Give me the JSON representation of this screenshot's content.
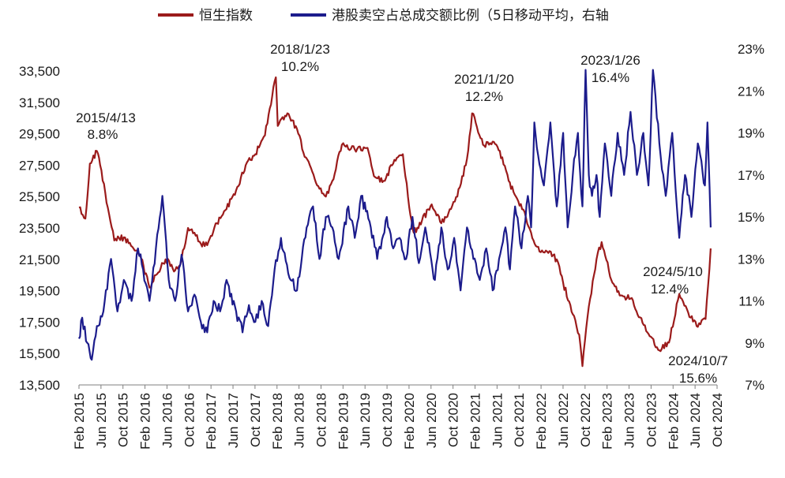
{
  "chart_data": {
    "type": "line",
    "title": "",
    "colors": {
      "hsi": "#9b1b1b",
      "short": "#1c1c8c"
    },
    "legend": [
      {
        "name": "恒生指数",
        "axis": "left"
      },
      {
        "name": "港股卖空占总成交额比例（5日移动平均，右轴",
        "axis": "right"
      }
    ],
    "x_ticks": [
      "Feb 2015",
      "Jun 2015",
      "Oct 2015",
      "Feb 2016",
      "Jun 2016",
      "Oct 2016",
      "Feb 2017",
      "Jun 2017",
      "Oct 2017",
      "Feb 2018",
      "Jun 2018",
      "Oct 2018",
      "Feb 2019",
      "Jun 2019",
      "Oct 2019",
      "Feb 2020",
      "Jun 2020",
      "Oct 2020",
      "Feb 2021",
      "Jun 2021",
      "Oct 2021",
      "Feb 2022",
      "Jun 2022",
      "Oct 2022",
      "Feb 2023",
      "Jun 2023",
      "Oct 2023",
      "Feb 2024",
      "Jun 2024",
      "Oct 2024"
    ],
    "x_range": [
      2015.0,
      2024.95
    ],
    "y_left": {
      "ticks": [
        "13,500",
        "15,500",
        "17,500",
        "19,500",
        "21,500",
        "23,500",
        "25,500",
        "27,500",
        "29,500",
        "31,500",
        "33,500"
      ],
      "min": 13500,
      "max": 33500
    },
    "y_right": {
      "ticks": [
        "7%",
        "9%",
        "11%",
        "13%",
        "15%",
        "17%",
        "19%",
        "21%",
        "23%"
      ],
      "min": 7,
      "max": 23
    },
    "series": [
      {
        "name": "恒生指数",
        "axis": "left",
        "x": [
          2015.0,
          2015.1,
          2015.17,
          2015.28,
          2015.33,
          2015.45,
          2015.55,
          2015.7,
          2015.85,
          2015.95,
          2016.1,
          2016.2,
          2016.35,
          2016.5,
          2016.6,
          2016.7,
          2016.8,
          2016.9,
          2017.0,
          2017.15,
          2017.3,
          2017.45,
          2017.6,
          2017.75,
          2017.9,
          2018.07,
          2018.1,
          2018.25,
          2018.4,
          2018.5,
          2018.6,
          2018.75,
          2018.85,
          2018.95,
          2019.1,
          2019.3,
          2019.5,
          2019.6,
          2019.75,
          2019.9,
          2020.05,
          2020.15,
          2020.22,
          2020.35,
          2020.5,
          2020.65,
          2020.8,
          2020.9,
          2021.05,
          2021.13,
          2021.3,
          2021.45,
          2021.6,
          2021.7,
          2021.85,
          2021.95,
          2022.05,
          2022.18,
          2022.3,
          2022.45,
          2022.55,
          2022.7,
          2022.8,
          2022.85,
          2022.95,
          2023.07,
          2023.15,
          2023.3,
          2023.45,
          2023.6,
          2023.75,
          2023.9,
          2024.05,
          2024.2,
          2024.36,
          2024.5,
          2024.65,
          2024.77,
          2024.85
        ],
        "values": [
          24800,
          24100,
          27600,
          28400,
          27500,
          24800,
          22700,
          22900,
          22200,
          21800,
          19700,
          20500,
          21500,
          20800,
          21500,
          23500,
          23200,
          22500,
          22400,
          23800,
          24700,
          25900,
          27500,
          28200,
          29400,
          33100,
          30000,
          30800,
          29800,
          28300,
          27500,
          26000,
          25500,
          26500,
          28800,
          28500,
          28600,
          26800,
          26500,
          27600,
          28200,
          24800,
          23200,
          24000,
          25000,
          23800,
          24700,
          25500,
          27900,
          30800,
          28800,
          29000,
          28000,
          26500,
          25200,
          24500,
          23200,
          22000,
          22000,
          21500,
          20000,
          18000,
          16700,
          14700,
          18500,
          21500,
          22600,
          20200,
          19200,
          19000,
          17800,
          16600,
          15700,
          16200,
          19300,
          18100,
          17200,
          17700,
          22200
        ]
      },
      {
        "name": "港股卖空占总成交额比例（5日移动平均，右轴",
        "axis": "right",
        "x": [
          2015.0,
          2015.05,
          2015.13,
          2015.2,
          2015.28,
          2015.38,
          2015.5,
          2015.6,
          2015.7,
          2015.82,
          2015.92,
          2016.0,
          2016.1,
          2016.2,
          2016.3,
          2016.4,
          2016.5,
          2016.6,
          2016.7,
          2016.8,
          2016.9,
          2017.0,
          2017.1,
          2017.2,
          2017.3,
          2017.45,
          2017.55,
          2017.65,
          2017.75,
          2017.85,
          2017.95,
          2018.05,
          2018.15,
          2018.3,
          2018.4,
          2018.55,
          2018.65,
          2018.75,
          2018.85,
          2018.95,
          2019.05,
          2019.2,
          2019.3,
          2019.4,
          2019.55,
          2019.65,
          2019.8,
          2019.9,
          2020.0,
          2020.1,
          2020.2,
          2020.3,
          2020.4,
          2020.55,
          2020.65,
          2020.75,
          2020.85,
          2020.95,
          2021.05,
          2021.15,
          2021.25,
          2021.35,
          2021.45,
          2021.55,
          2021.65,
          2021.72,
          2021.8,
          2021.9,
          2022.0,
          2022.05,
          2022.1,
          2022.18,
          2022.25,
          2022.35,
          2022.45,
          2022.55,
          2022.62,
          2022.7,
          2022.78,
          2022.85,
          2022.9,
          2022.95,
          2023.0,
          2023.07,
          2023.12,
          2023.2,
          2023.3,
          2023.4,
          2023.5,
          2023.6,
          2023.7,
          2023.8,
          2023.88,
          2023.95,
          2024.05,
          2024.15,
          2024.25,
          2024.36,
          2024.45,
          2024.55,
          2024.65,
          2024.76,
          2024.8,
          2024.85
        ],
        "values": [
          9.2,
          10.2,
          9.0,
          8.2,
          9.8,
          10.5,
          13.0,
          10.5,
          12.0,
          11.0,
          13.5,
          12.5,
          11.0,
          13.5,
          16.0,
          12.0,
          11.0,
          13.2,
          10.5,
          11.3,
          10.0,
          9.5,
          11.0,
          10.5,
          12.0,
          10.5,
          9.5,
          10.8,
          10.0,
          11.0,
          9.8,
          12.5,
          14.0,
          12.0,
          11.5,
          14.5,
          15.5,
          13.0,
          15.0,
          14.5,
          13.0,
          15.5,
          14.0,
          16.0,
          14.5,
          13.0,
          15.0,
          13.5,
          14.0,
          13.0,
          15.0,
          12.8,
          14.5,
          12.0,
          14.5,
          12.5,
          14.0,
          11.5,
          14.5,
          13.0,
          12.0,
          13.5,
          11.5,
          13.0,
          14.5,
          12.5,
          15.5,
          13.5,
          16.0,
          14.5,
          19.5,
          17.5,
          16.5,
          19.5,
          15.5,
          19.0,
          14.5,
          17.0,
          19.0,
          15.5,
          22.0,
          17.0,
          16.0,
          17.0,
          15.0,
          18.5,
          16.0,
          19.0,
          17.0,
          20.0,
          17.0,
          19.0,
          16.5,
          22.0,
          18.5,
          16.0,
          19.0,
          14.0,
          17.0,
          15.0,
          18.5,
          16.5,
          19.5,
          14.5
        ]
      }
    ],
    "annotations": [
      {
        "date": "2015/4/13",
        "value": "8.8%"
      },
      {
        "date": "2018/1/23",
        "value": "10.2%"
      },
      {
        "date": "2021/1/20",
        "value": "12.2%"
      },
      {
        "date": "2023/1/26",
        "value": "16.4%"
      },
      {
        "date": "2024/5/10",
        "value": "12.4%"
      },
      {
        "date": "2024/10/7",
        "value": "15.6%"
      }
    ]
  }
}
